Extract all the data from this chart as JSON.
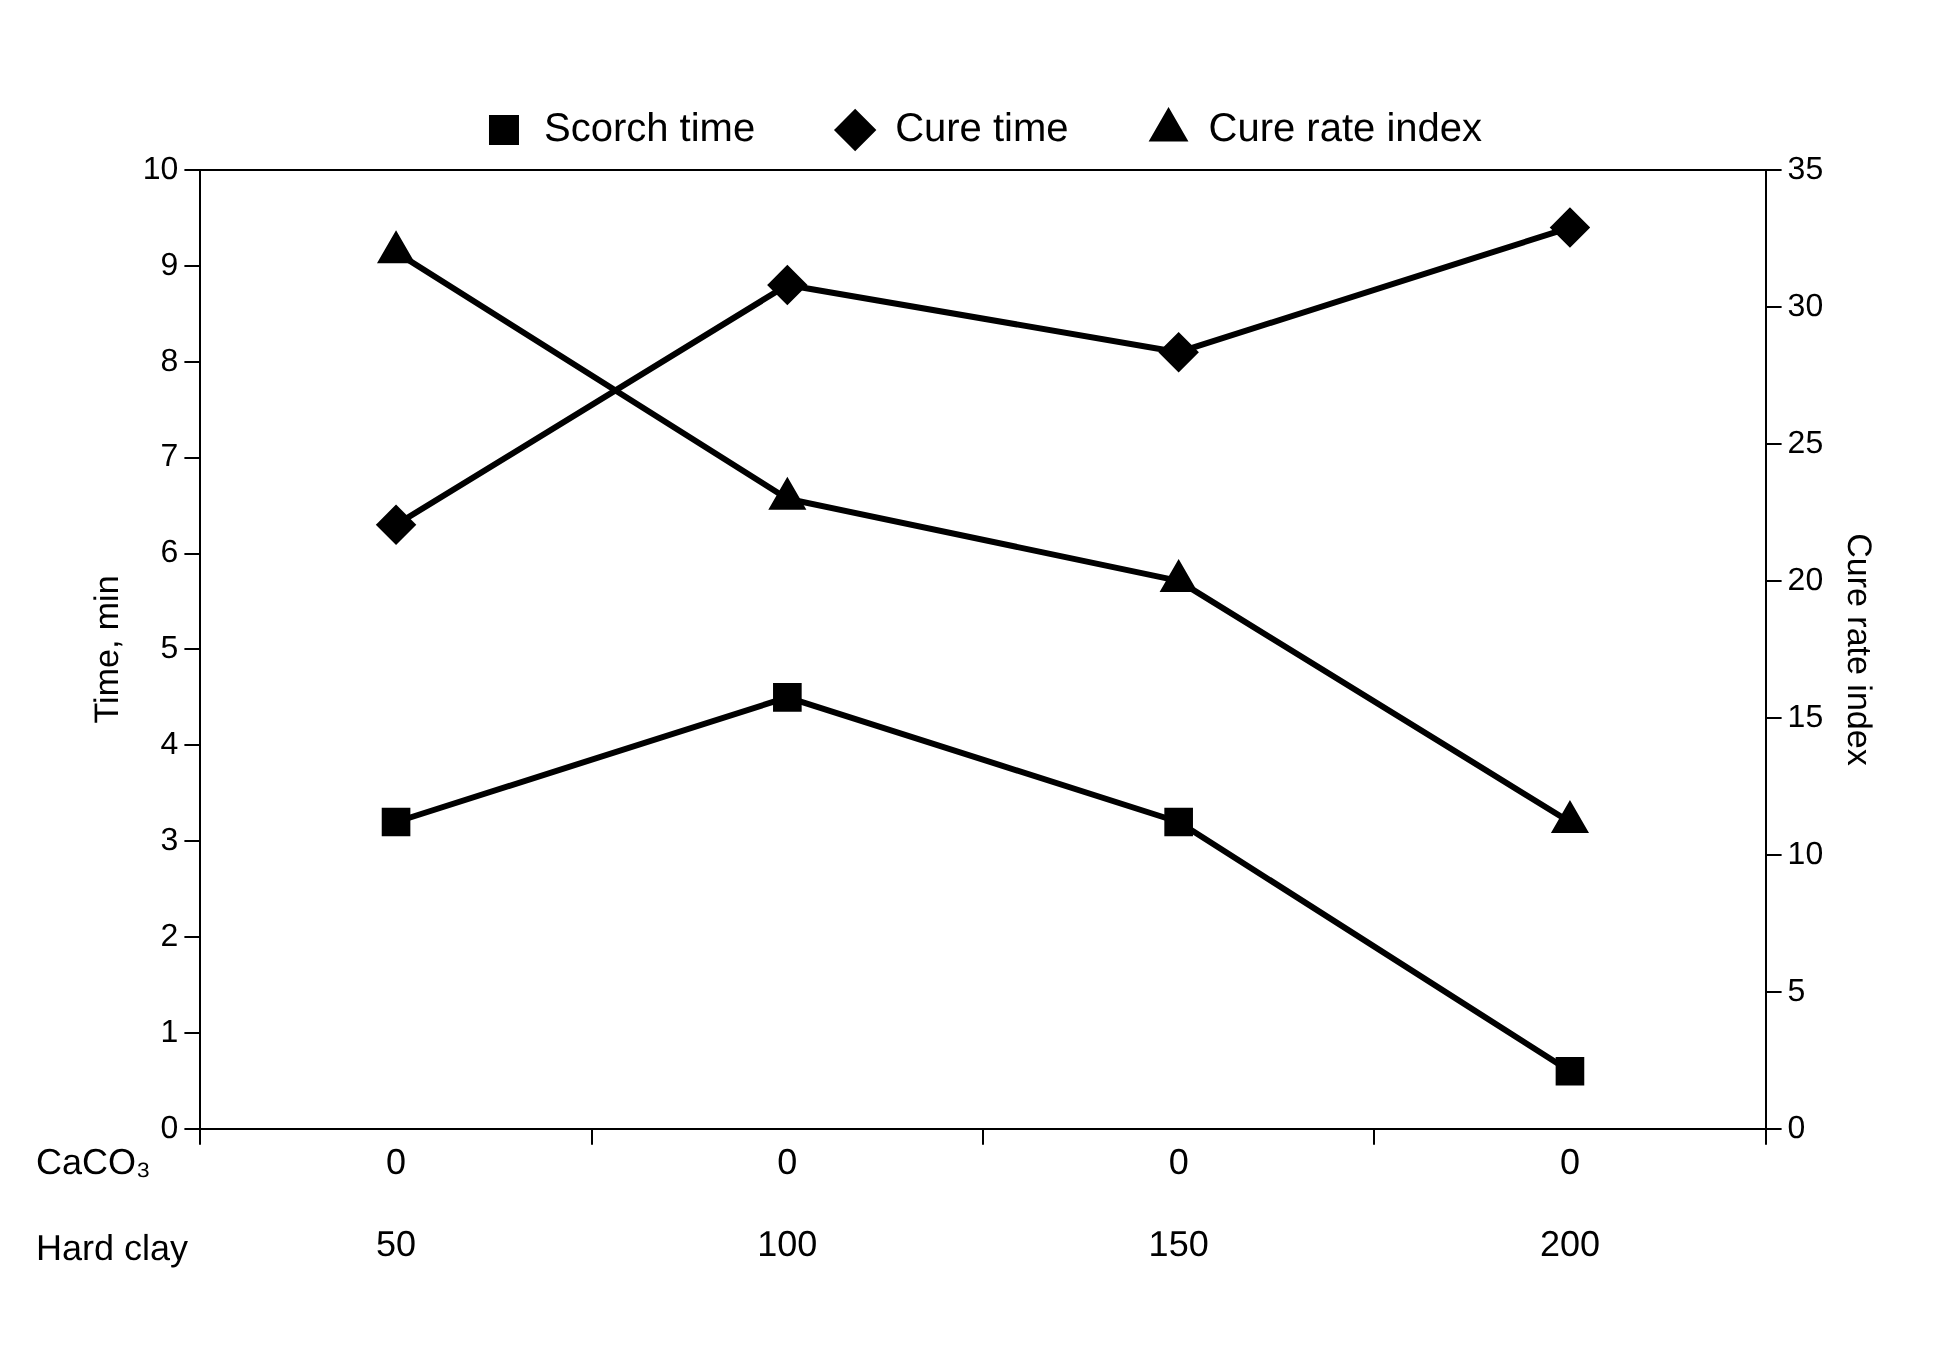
{
  "chart_data": {
    "type": "line",
    "categories": [
      "50",
      "100",
      "150",
      "200"
    ],
    "xlabel": "Hard clay",
    "ylabel": "Time, min",
    "y2label": "Cure rate index",
    "series": [
      {
        "name": "Scorch time",
        "color": "#000000",
        "marker": "square",
        "values": [
          3.2,
          4.5,
          3.2,
          0.6
        ]
      },
      {
        "name": "Cure time",
        "color": "#000000",
        "marker": "diamond",
        "values": [
          6.3,
          8.8,
          8.1,
          9.4
        ]
      },
      {
        "name": "Cure rate index",
        "color": "#000000",
        "marker": "triangle",
        "axis": "y2",
        "values": [
          32,
          23,
          20,
          11.2
        ]
      }
    ],
    "ylim": [
      0,
      10
    ],
    "yticks": [
      0,
      1,
      2,
      3,
      4,
      5,
      6,
      7,
      8,
      9,
      10
    ],
    "y2lim": [
      0,
      35
    ],
    "y2ticks": [
      0,
      5,
      10,
      15,
      20,
      25,
      30,
      35
    ],
    "grid": false,
    "legend": "top",
    "line_style": "solid",
    "annotations": [
      "CaCO₃",
      "0",
      "0",
      "0",
      "0"
    ]
  }
}
